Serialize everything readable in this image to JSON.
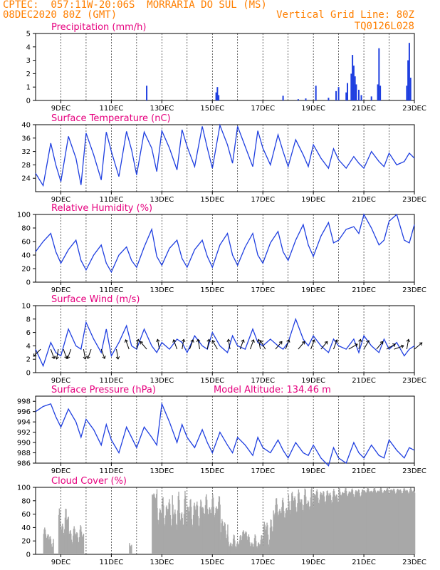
{
  "header": {
    "line1": "CPTEC:  057:11W-20:06S  MORRARIA DO SUL (MS)",
    "line2": "08DEC2020 80Z (GMT)",
    "grid_note": "Vertical Grid Line: 80Z",
    "code": "TQ0126L028"
  },
  "colors": {
    "header": "#ff7f00",
    "title": "#e6007e",
    "line": "#1f3fe0",
    "cloud": "#a8a8a8",
    "bar": "#1f3fe0"
  },
  "chart_data": [
    {
      "id": "precip",
      "type": "bar",
      "title": "Precipitation (mm/h)",
      "ylim": [
        0,
        5
      ],
      "yticks": [
        0,
        1,
        2,
        3,
        4,
        5
      ],
      "x_day_start": 8,
      "x_day_end": 23,
      "xtick_labels": [
        "9DEC",
        "11DEC",
        "13DEC",
        "15DEC",
        "17DEC",
        "19DEC",
        "21DEC",
        "23DEC"
      ],
      "values": [
        [
          12.4,
          1.1
        ],
        [
          15.15,
          0.6
        ],
        [
          15.2,
          1.0
        ],
        [
          15.25,
          0.4
        ],
        [
          17.8,
          0.35
        ],
        [
          18.4,
          0.1
        ],
        [
          18.7,
          0.15
        ],
        [
          19.1,
          1.1
        ],
        [
          19.6,
          0.2
        ],
        [
          19.9,
          0.7
        ],
        [
          20.0,
          1.0
        ],
        [
          20.3,
          0.6
        ],
        [
          20.35,
          1.3
        ],
        [
          20.5,
          2.0
        ],
        [
          20.55,
          3.4
        ],
        [
          20.6,
          2.6
        ],
        [
          20.65,
          1.8
        ],
        [
          20.7,
          1.2
        ],
        [
          20.8,
          0.8
        ],
        [
          20.9,
          0.4
        ],
        [
          21.3,
          0.3
        ],
        [
          21.55,
          1.2
        ],
        [
          21.6,
          3.9
        ],
        [
          21.65,
          1.1
        ],
        [
          22.7,
          1.1
        ],
        [
          22.75,
          3.0
        ],
        [
          22.8,
          4.3
        ],
        [
          22.85,
          1.7
        ]
      ]
    },
    {
      "id": "temp",
      "type": "line",
      "title": "Surface Temperature (nC)",
      "ylim": [
        20,
        40
      ],
      "yticks": [
        24,
        28,
        32,
        36,
        40
      ],
      "x_day_start": 8,
      "x_day_end": 23,
      "xtick_labels": [
        "9DEC",
        "11DEC",
        "13DEC",
        "15DEC",
        "17DEC",
        "19DEC",
        "21DEC",
        "23DEC"
      ],
      "x": [
        8.0,
        8.3,
        8.6,
        8.8,
        9.0,
        9.3,
        9.6,
        9.8,
        10.0,
        10.3,
        10.6,
        10.8,
        11.0,
        11.3,
        11.6,
        11.8,
        12.0,
        12.3,
        12.6,
        12.8,
        13.0,
        13.3,
        13.6,
        13.8,
        14.0,
        14.3,
        14.6,
        14.8,
        15.0,
        15.3,
        15.6,
        15.8,
        16.0,
        16.3,
        16.6,
        16.8,
        17.0,
        17.3,
        17.6,
        17.8,
        18.0,
        18.3,
        18.6,
        18.8,
        19.0,
        19.3,
        19.6,
        19.8,
        20.0,
        20.3,
        20.6,
        20.8,
        21.0,
        21.3,
        21.6,
        21.8,
        22.0,
        22.3,
        22.6,
        22.8,
        23.0
      ],
      "series": [
        {
          "values": [
            25.5,
            21.8,
            34.5,
            28.0,
            23.0,
            36.5,
            30.0,
            22.0,
            37.5,
            31.0,
            23.5,
            37.8,
            32.0,
            24.5,
            38.0,
            32.5,
            25.0,
            37.8,
            33.0,
            26.0,
            38.2,
            33.0,
            26.5,
            38.5,
            33.5,
            27.5,
            39.5,
            33.0,
            27.0,
            39.8,
            34.0,
            28.5,
            39.5,
            33.5,
            27.5,
            38.2,
            33.0,
            28.0,
            37.0,
            32.0,
            27.5,
            35.5,
            31.0,
            27.5,
            34.0,
            30.0,
            27.0,
            32.8,
            29.5,
            27.0,
            30.5,
            28.5,
            27.0,
            32.0,
            29.0,
            27.5,
            31.5,
            28.0,
            29.0,
            31.5,
            30.0
          ]
        }
      ]
    },
    {
      "id": "rh",
      "type": "line",
      "title": "Relative Humidity (%)",
      "ylim": [
        0,
        100
      ],
      "yticks": [
        0,
        20,
        40,
        60,
        80,
        100
      ],
      "x_day_start": 8,
      "x_day_end": 23,
      "xtick_labels": [
        "9DEC",
        "11DEC",
        "13DEC",
        "15DEC",
        "17DEC",
        "19DEC",
        "21DEC",
        "23DEC"
      ],
      "x": [
        8.0,
        8.3,
        8.6,
        8.8,
        9.0,
        9.3,
        9.6,
        9.8,
        10.0,
        10.3,
        10.6,
        10.8,
        11.0,
        11.3,
        11.6,
        11.8,
        12.0,
        12.3,
        12.6,
        12.8,
        13.0,
        13.3,
        13.6,
        13.8,
        14.0,
        14.3,
        14.6,
        14.8,
        15.0,
        15.3,
        15.6,
        15.8,
        16.0,
        16.3,
        16.6,
        16.8,
        17.0,
        17.3,
        17.6,
        17.8,
        18.0,
        18.3,
        18.6,
        18.8,
        19.0,
        19.3,
        19.6,
        19.8,
        20.0,
        20.3,
        20.6,
        20.8,
        21.0,
        21.3,
        21.6,
        21.8,
        22.0,
        22.3,
        22.6,
        22.8,
        23.0
      ],
      "series": [
        {
          "values": [
            45,
            60,
            72,
            45,
            28,
            48,
            62,
            32,
            18,
            40,
            55,
            28,
            15,
            40,
            52,
            32,
            22,
            52,
            78,
            38,
            25,
            50,
            62,
            35,
            22,
            48,
            62,
            38,
            22,
            55,
            72,
            40,
            25,
            52,
            72,
            40,
            28,
            58,
            75,
            45,
            32,
            62,
            85,
            55,
            38,
            68,
            88,
            58,
            62,
            78,
            82,
            72,
            100,
            80,
            55,
            62,
            90,
            100,
            62,
            58,
            85
          ]
        }
      ]
    },
    {
      "id": "wind",
      "type": "line",
      "title": "Surface Wind (m/s)",
      "ylim": [
        0,
        10
      ],
      "yticks": [
        0,
        2,
        4,
        6,
        8,
        10
      ],
      "x_day_start": 8,
      "x_day_end": 23,
      "xtick_labels": [
        "9DEC",
        "11DEC",
        "13DEC",
        "15DEC",
        "17DEC",
        "19DEC",
        "21DEC",
        "23DEC"
      ],
      "x": [
        8.0,
        8.3,
        8.6,
        8.8,
        9.0,
        9.3,
        9.6,
        9.8,
        10.0,
        10.3,
        10.6,
        10.8,
        11.0,
        11.3,
        11.6,
        11.8,
        12.0,
        12.3,
        12.6,
        12.8,
        13.0,
        13.3,
        13.6,
        13.8,
        14.0,
        14.3,
        14.6,
        14.8,
        15.0,
        15.3,
        15.6,
        15.8,
        16.0,
        16.3,
        16.6,
        16.8,
        17.0,
        17.3,
        17.6,
        17.8,
        18.0,
        18.3,
        18.6,
        18.8,
        19.0,
        19.3,
        19.6,
        19.8,
        20.0,
        20.3,
        20.6,
        20.8,
        21.0,
        21.3,
        21.6,
        21.8,
        22.0,
        22.3,
        22.6,
        22.8,
        23.0
      ],
      "series": [
        {
          "values": [
            3.5,
            1.0,
            4.5,
            3.0,
            2.5,
            6.5,
            4.0,
            3.5,
            7.5,
            5.0,
            3.0,
            6.5,
            2.5,
            4.5,
            7.0,
            4.0,
            3.5,
            6.5,
            4.0,
            3.0,
            4.5,
            3.5,
            5.0,
            4.5,
            3.0,
            5.5,
            4.0,
            3.5,
            6.0,
            4.0,
            3.0,
            5.5,
            4.0,
            3.5,
            6.5,
            4.5,
            4.0,
            5.0,
            4.0,
            3.5,
            4.5,
            8.0,
            5.0,
            4.0,
            5.5,
            4.0,
            3.0,
            5.0,
            4.0,
            3.5,
            5.0,
            3.0,
            5.5,
            4.0,
            3.0,
            5.0,
            3.5,
            4.5,
            2.5,
            3.5,
            4.0
          ]
        }
      ],
      "vectors": [
        [
          8.2,
          225,
          1.0
        ],
        [
          8.6,
          160,
          1.0
        ],
        [
          8.9,
          190,
          1.0
        ],
        [
          9.1,
          160,
          1.0
        ],
        [
          9.4,
          200,
          1.0
        ],
        [
          9.9,
          170,
          1.0
        ],
        [
          10.2,
          200,
          1.0
        ],
        [
          10.6,
          160,
          1.0
        ],
        [
          11.2,
          170,
          1.0
        ],
        [
          11.7,
          340,
          1.0
        ],
        [
          12.0,
          10,
          1.0
        ],
        [
          12.4,
          320,
          1.0
        ],
        [
          12.9,
          350,
          1.0
        ],
        [
          13.6,
          340,
          1.0
        ],
        [
          13.8,
          10,
          1.0
        ],
        [
          14.1,
          20,
          1.0
        ],
        [
          14.5,
          350,
          1.0
        ],
        [
          14.8,
          10,
          1.0
        ],
        [
          15.2,
          330,
          1.0
        ],
        [
          15.7,
          350,
          1.0
        ],
        [
          16.1,
          20,
          1.0
        ],
        [
          16.5,
          20,
          1.0
        ],
        [
          16.9,
          350,
          1.0
        ],
        [
          17.1,
          330,
          1.0
        ],
        [
          17.5,
          40,
          1.0
        ],
        [
          17.9,
          20,
          1.0
        ],
        [
          18.4,
          40,
          1.0
        ],
        [
          18.9,
          20,
          1.0
        ],
        [
          19.3,
          40,
          1.0
        ],
        [
          19.8,
          20,
          1.0
        ],
        [
          20.4,
          60,
          1.0
        ],
        [
          20.8,
          10,
          1.0
        ],
        [
          21.0,
          30,
          1.0
        ],
        [
          21.5,
          40,
          1.0
        ],
        [
          21.9,
          60,
          1.0
        ],
        [
          22.2,
          70,
          1.0
        ],
        [
          22.7,
          10,
          1.0
        ],
        [
          23.0,
          50,
          1.0
        ]
      ]
    },
    {
      "id": "pres",
      "type": "line",
      "title": "Surface Pressure (hPa)",
      "ylim": [
        986,
        999
      ],
      "yticks": [
        986,
        988,
        990,
        992,
        994,
        996,
        998
      ],
      "x_day_start": 8,
      "x_day_end": 23,
      "xtick_labels": [
        "9DEC",
        "11DEC",
        "13DEC",
        "15DEC",
        "17DEC",
        "19DEC",
        "21DEC",
        "23DEC"
      ],
      "x": [
        8.0,
        8.3,
        8.6,
        8.8,
        9.0,
        9.3,
        9.6,
        9.8,
        10.0,
        10.3,
        10.6,
        10.8,
        11.0,
        11.3,
        11.6,
        11.8,
        12.0,
        12.3,
        12.6,
        12.8,
        13.0,
        13.3,
        13.6,
        13.8,
        14.0,
        14.3,
        14.6,
        14.8,
        15.0,
        15.3,
        15.6,
        15.8,
        16.0,
        16.3,
        16.6,
        16.8,
        17.0,
        17.3,
        17.6,
        17.8,
        18.0,
        18.3,
        18.6,
        18.8,
        19.0,
        19.3,
        19.6,
        19.8,
        20.0,
        20.3,
        20.6,
        20.8,
        21.0,
        21.3,
        21.6,
        21.8,
        22.0,
        22.3,
        22.6,
        22.8,
        23.0
      ],
      "series": [
        {
          "values": [
            996.0,
            997.0,
            997.5,
            995.0,
            993.0,
            996.5,
            994.0,
            991.0,
            994.5,
            992.5,
            989.5,
            993.5,
            990.5,
            988.0,
            993.0,
            991.0,
            989.0,
            993.0,
            991.0,
            989.5,
            997.5,
            994.0,
            990.0,
            993.5,
            991.0,
            989.0,
            992.5,
            990.0,
            988.0,
            992.0,
            989.5,
            988.0,
            991.0,
            989.5,
            987.5,
            991.0,
            989.0,
            988.0,
            990.5,
            988.5,
            987.0,
            990.0,
            988.0,
            987.5,
            989.5,
            987.0,
            985.5,
            989.0,
            987.0,
            986.0,
            990.0,
            988.0,
            987.0,
            989.5,
            987.5,
            987.0,
            990.5,
            988.5,
            987.0,
            989.0,
            988.5
          ]
        }
      ],
      "extra_label": "Model Altitude: 134.46 m"
    },
    {
      "id": "cloud",
      "type": "bar",
      "title": "Cloud Cover (%)",
      "ylim": [
        0,
        100
      ],
      "yticks": [
        0,
        20,
        40,
        60,
        80,
        100
      ],
      "x_day_start": 8,
      "x_day_end": 23,
      "xtick_labels": [
        "9DEC",
        "11DEC",
        "13DEC",
        "15DEC",
        "17DEC",
        "19DEC",
        "21DEC",
        "23DEC"
      ],
      "ranges": [
        [
          8.3,
          8.5,
          20,
          40
        ],
        [
          8.5,
          8.7,
          10,
          30
        ],
        [
          8.9,
          9.2,
          20,
          70
        ],
        [
          9.2,
          9.3,
          50,
          60
        ],
        [
          9.3,
          9.9,
          15,
          45
        ],
        [
          11.7,
          11.8,
          10,
          20
        ],
        [
          12.6,
          12.8,
          80,
          100
        ],
        [
          12.8,
          13.4,
          40,
          90
        ],
        [
          13.4,
          14.0,
          30,
          95
        ],
        [
          14.0,
          14.6,
          40,
          90
        ],
        [
          14.6,
          15.3,
          50,
          90
        ],
        [
          15.3,
          15.6,
          20,
          60
        ],
        [
          15.6,
          16.1,
          5,
          30
        ],
        [
          16.1,
          16.4,
          20,
          40
        ],
        [
          16.4,
          17.0,
          5,
          30
        ],
        [
          17.0,
          17.4,
          10,
          60
        ],
        [
          17.4,
          18.0,
          50,
          85
        ],
        [
          18.0,
          19.0,
          60,
          100
        ],
        [
          19.0,
          20.0,
          75,
          100
        ],
        [
          20.0,
          21.0,
          85,
          100
        ],
        [
          21.0,
          23.0,
          90,
          100
        ]
      ]
    }
  ]
}
